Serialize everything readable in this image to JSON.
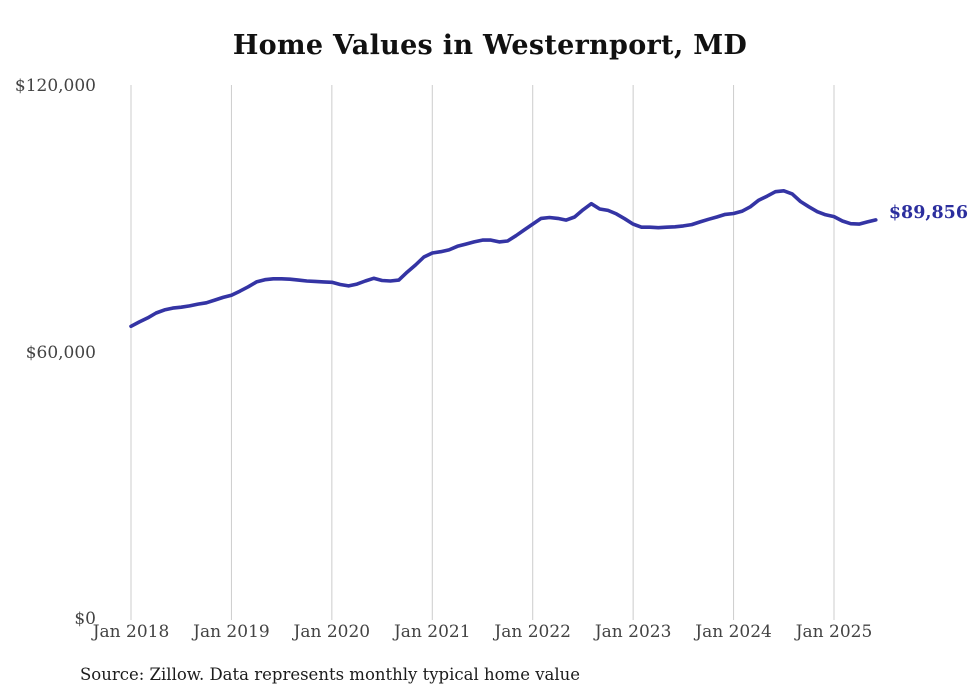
{
  "source_note": "Source: Zillow. Data represents monthly typical home value",
  "chart_data": {
    "type": "line",
    "title": "Home Values in Westernport, MD",
    "end_label": "$89,856",
    "latest_value": 89856,
    "x_tick_labels": [
      "Jan 2018",
      "Jan 2019",
      "Jan 2020",
      "Jan 2021",
      "Jan 2022",
      "Jan 2023",
      "Jan 2024",
      "Jan 2025"
    ],
    "y_axis": {
      "ylim": [
        0,
        120000
      ],
      "ticks": [
        {
          "label": "$120,000",
          "value": 120000
        },
        {
          "label": "$60,000",
          "value": 60000
        },
        {
          "label": "$0",
          "value": 0
        }
      ]
    },
    "grid": "vertical-only",
    "legend": "none",
    "series": [
      {
        "name": "Monthly typical home value",
        "start_month": "2018-01",
        "end_month": "2025-06",
        "values": [
          65900,
          66900,
          67800,
          68900,
          69600,
          70000,
          70200,
          70500,
          70900,
          71200,
          71800,
          72400,
          72900,
          73800,
          74800,
          75900,
          76400,
          76600,
          76600,
          76500,
          76300,
          76100,
          76000,
          75900,
          75800,
          75300,
          75000,
          75400,
          76100,
          76700,
          76200,
          76100,
          76300,
          78100,
          79700,
          81500,
          82400,
          82700,
          83100,
          83900,
          84400,
          84900,
          85300,
          85300,
          84900,
          85100,
          86300,
          87600,
          88900,
          90200,
          90400,
          90200,
          89800,
          90500,
          92100,
          93500,
          92300,
          92000,
          91200,
          90100,
          88900,
          88200,
          88200,
          88100,
          88200,
          88300,
          88500,
          88800,
          89400,
          90000,
          90500,
          91100,
          91300,
          91800,
          92800,
          94300,
          95200,
          96200,
          96400,
          95700,
          94000,
          92800,
          91700,
          91000,
          90600,
          89600,
          89000,
          88900,
          89400,
          89856
        ]
      }
    ],
    "colors": {
      "background": "#ffffff",
      "line": "#3434a4",
      "end_label": "#2b2e9e",
      "grid": "#cccccc",
      "tick_text": "#434343",
      "title_text": "#111111",
      "source_text": "#1c1c1c"
    }
  }
}
